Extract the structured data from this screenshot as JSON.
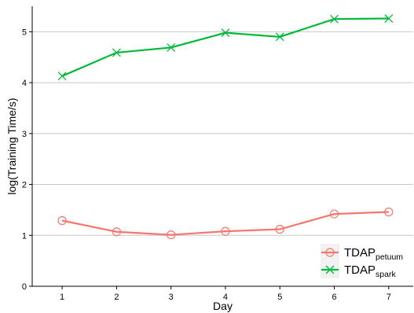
{
  "chart_data": {
    "type": "line",
    "xlabel": "Day",
    "ylabel": "log(Training Time/s)",
    "x": [
      1,
      2,
      3,
      4,
      5,
      6,
      7
    ],
    "xticks": [
      "1",
      "2",
      "3",
      "4",
      "5",
      "6",
      "7"
    ],
    "xlim": [
      0.45,
      7.45
    ],
    "yticks": [
      "0",
      "1",
      "2",
      "3",
      "4",
      "5"
    ],
    "ylim": [
      0,
      5.5
    ],
    "grid": "horizontal",
    "legend_position": "bottom-right",
    "series": [
      {
        "name_base": "TDAP",
        "name_sub": "petuum",
        "color": "#F8766D",
        "marker": "circle-open",
        "values": [
          1.29,
          1.07,
          1.01,
          1.08,
          1.12,
          1.42,
          1.46
        ]
      },
      {
        "name_base": "TDAP",
        "name_sub": "spark",
        "color": "#00BA38",
        "marker": "cross",
        "values": [
          4.13,
          4.59,
          4.69,
          4.98,
          4.9,
          5.25,
          5.26
        ]
      }
    ]
  }
}
